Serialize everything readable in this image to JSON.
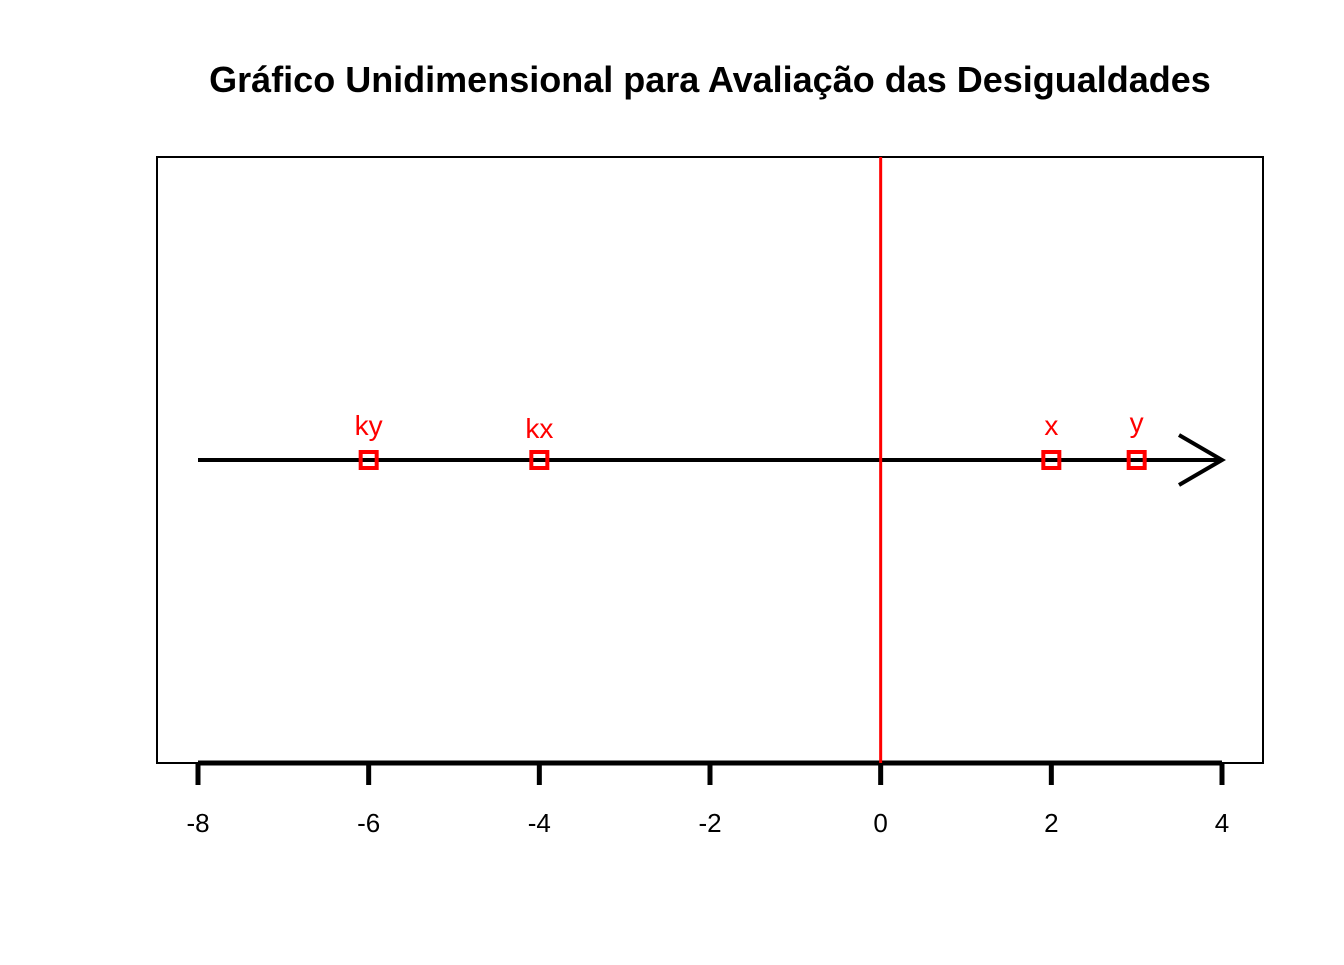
{
  "chart_data": {
    "type": "scatter",
    "title": "Gráfico Unidimensional para Avaliação das Desigualdades",
    "xlabel": "",
    "ylabel": "",
    "xlim": [
      -8,
      4
    ],
    "xticks": [
      -8,
      -6,
      -4,
      -2,
      0,
      2,
      4
    ],
    "tick_labels": [
      "-8",
      "-6",
      "-4",
      "-2",
      "0",
      "2",
      "4"
    ],
    "points": [
      {
        "label": "ky",
        "x": -6
      },
      {
        "label": "kx",
        "x": -4
      },
      {
        "label": "x",
        "x": 2
      },
      {
        "label": "y",
        "x": 3
      }
    ],
    "reference_line_x": 0,
    "number_line": {
      "from": -8,
      "to": 4,
      "arrow": true
    },
    "grid": false,
    "legend": "none",
    "colors": {
      "points": "#ff0000",
      "labels": "#ff0000",
      "reference_line": "#ff0000",
      "number_line": "#000000",
      "axis": "#000000",
      "frame": "#000000"
    }
  }
}
